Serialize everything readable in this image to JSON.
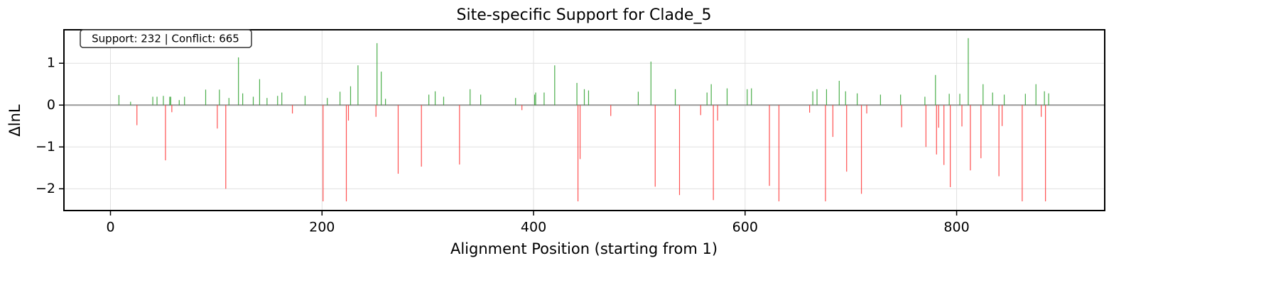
{
  "chart_data": {
    "type": "bar",
    "title": "Site-specific Support for Clade_5",
    "xlabel": "Alignment Position (starting from 1)",
    "ylabel": "ΔlnL",
    "annotation": "Support: 232 | Conflict: 665",
    "x": [
      8,
      19,
      25,
      40,
      44,
      50,
      52,
      56,
      57,
      58,
      65,
      70,
      90,
      101,
      103,
      109,
      112,
      121,
      125,
      135,
      141,
      148,
      158,
      162,
      172,
      184,
      201,
      205,
      217,
      223,
      225,
      227,
      234,
      251,
      252,
      256,
      260,
      272,
      294,
      301,
      307,
      315,
      330,
      340,
      350,
      383,
      389,
      401,
      402,
      410,
      420,
      441,
      442,
      444,
      448,
      452,
      473,
      499,
      511,
      515,
      534,
      538,
      558,
      564,
      568,
      570,
      574,
      583,
      602,
      606,
      623,
      632,
      661,
      664,
      668,
      676,
      677,
      683,
      689,
      695,
      696,
      706,
      710,
      715,
      728,
      747,
      748,
      770,
      771,
      780,
      781,
      783,
      788,
      793,
      794,
      803,
      805,
      811,
      813,
      823,
      825,
      834,
      840,
      843,
      845,
      862,
      865,
      875,
      880,
      883,
      884,
      887
    ],
    "values": [
      0.24,
      0.08,
      -0.48,
      0.2,
      0.2,
      0.22,
      -1.32,
      0.2,
      0.2,
      -0.17,
      0.12,
      0.2,
      0.37,
      -0.56,
      0.37,
      -2.0,
      0.17,
      1.14,
      0.28,
      0.2,
      0.62,
      0.17,
      0.22,
      0.3,
      -0.2,
      0.22,
      -2.3,
      0.17,
      0.32,
      -2.3,
      -0.37,
      0.45,
      0.95,
      -0.28,
      1.48,
      0.8,
      0.15,
      -1.64,
      -1.47,
      0.25,
      0.33,
      0.2,
      -1.42,
      0.38,
      0.25,
      0.17,
      -0.12,
      0.25,
      0.3,
      0.3,
      0.95,
      0.53,
      -2.3,
      -1.29,
      0.38,
      0.35,
      -0.26,
      0.32,
      1.04,
      -1.95,
      0.38,
      -2.15,
      -0.24,
      0.3,
      0.5,
      -2.27,
      -0.37,
      0.4,
      0.38,
      0.4,
      -1.93,
      -2.3,
      -0.18,
      0.33,
      0.38,
      -2.3,
      0.38,
      -0.76,
      0.58,
      0.33,
      -1.59,
      0.28,
      -2.12,
      -0.2,
      0.25,
      0.25,
      -0.53,
      0.2,
      -1.0,
      0.72,
      -1.18,
      -0.54,
      -1.43,
      0.27,
      -1.96,
      0.27,
      -0.51,
      1.6,
      -1.56,
      -1.27,
      0.5,
      0.3,
      -1.7,
      -0.5,
      0.25,
      -2.3,
      0.27,
      0.5,
      -0.28,
      0.33,
      -2.3,
      0.28
    ],
    "positive_color": "#2ca02c",
    "negative_color": "#ff3333",
    "reference_line": 0,
    "xlim": [
      -44,
      940
    ],
    "ylim": [
      -2.52,
      1.8
    ],
    "xticks": [
      0,
      200,
      400,
      600,
      800
    ],
    "yticks": [
      {
        "value": -2,
        "label": "−2"
      },
      {
        "value": -1,
        "label": "−1"
      },
      0,
      1
    ],
    "grid": true
  }
}
